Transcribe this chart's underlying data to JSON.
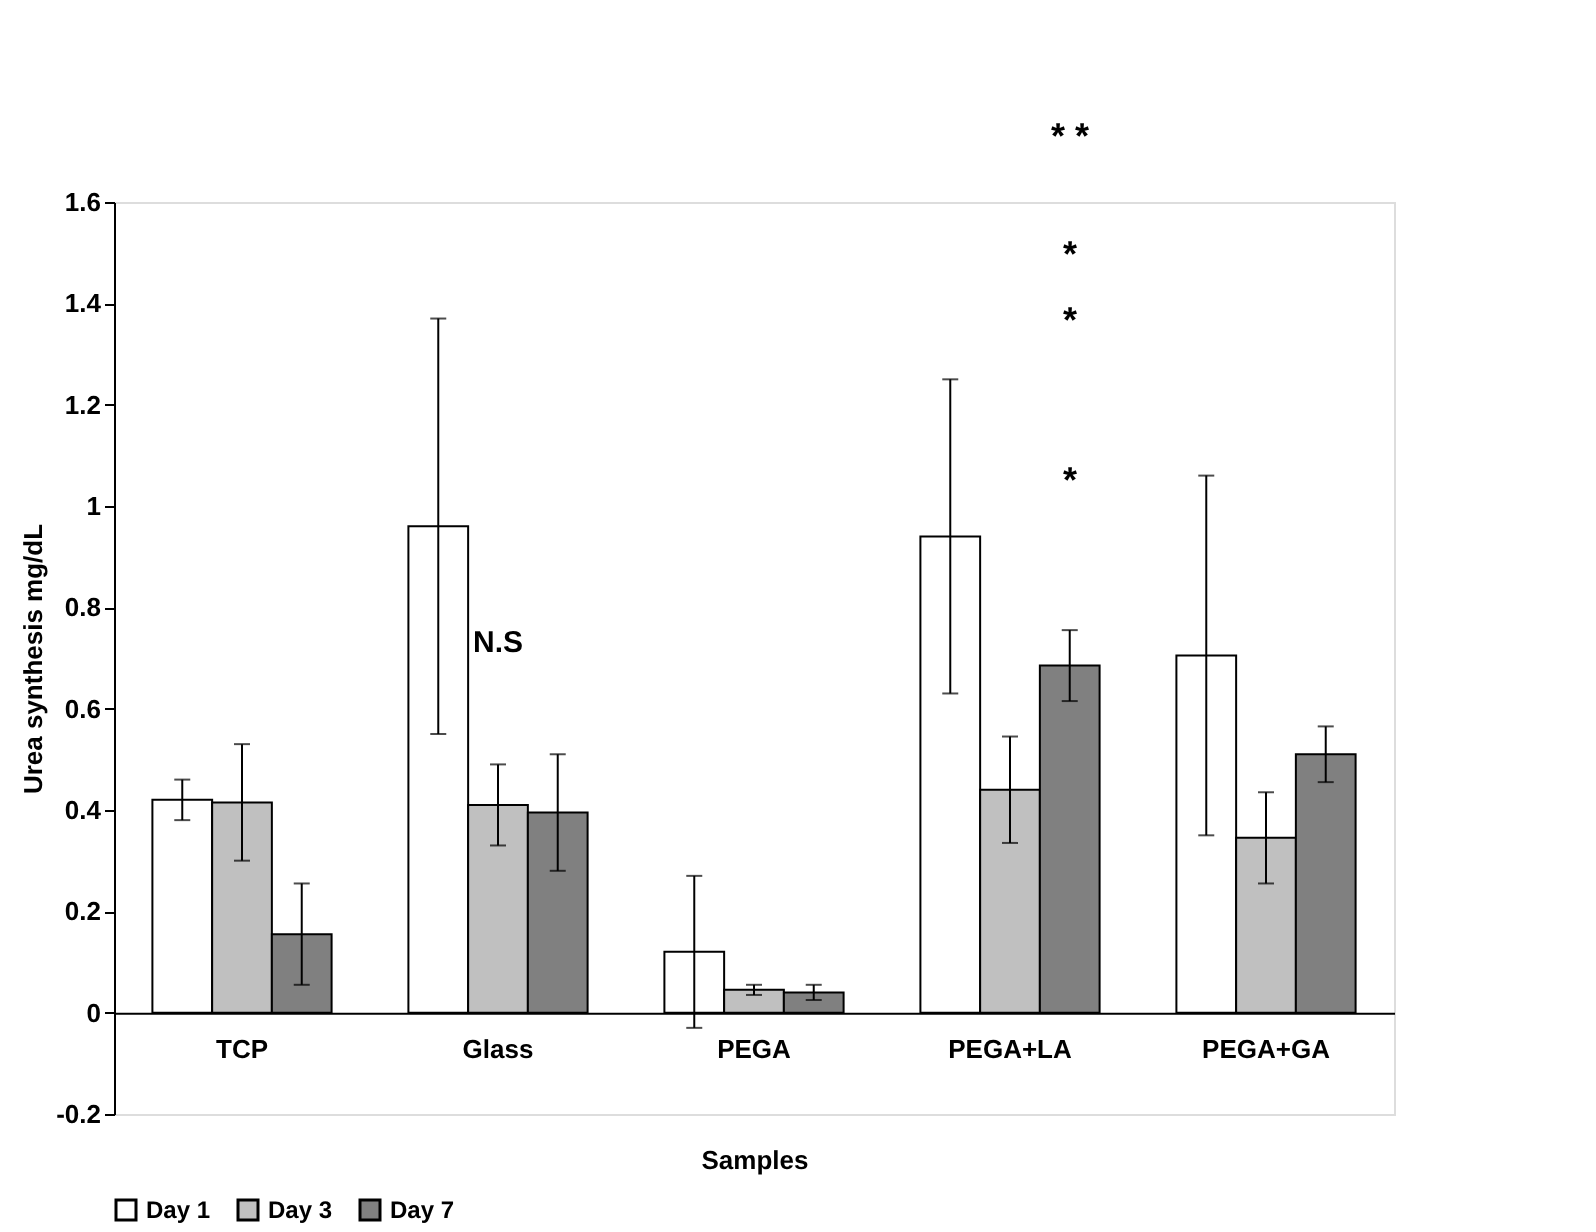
{
  "chart_data": {
    "type": "bar",
    "xlabel": "Samples",
    "ylabel": "Urea synthesis  mg/dL",
    "categories": [
      "TCP",
      "Glass",
      "PEGA",
      "PEGA+LA",
      "PEGA+GA"
    ],
    "series": [
      {
        "name": "Day 1",
        "color": "#ffffff",
        "values": [
          0.42,
          0.96,
          0.12,
          0.94,
          0.705
        ],
        "errors": [
          0.04,
          0.41,
          0.15,
          0.31,
          0.355
        ]
      },
      {
        "name": "Day 3",
        "color": "#c0c0c0",
        "values": [
          0.415,
          0.41,
          0.045,
          0.44,
          0.345
        ],
        "errors": [
          0.115,
          0.08,
          0.01,
          0.105,
          0.09
        ]
      },
      {
        "name": "Day 7",
        "color": "#808080",
        "values": [
          0.155,
          0.395,
          0.04,
          0.685,
          0.51
        ],
        "errors": [
          0.1,
          0.115,
          0.015,
          0.07,
          0.055
        ]
      }
    ],
    "ylim": [
      -0.2,
      1.6
    ],
    "yticks": [
      {
        "value": -0.2,
        "label": "-0.2"
      },
      0,
      0.2,
      0.4,
      0.6,
      0.8,
      1,
      1.2,
      1.4,
      1.6
    ],
    "grid": false,
    "legend": "bottom",
    "annotations": [
      "N.S",
      "*",
      "*",
      "*",
      "* *"
    ]
  }
}
